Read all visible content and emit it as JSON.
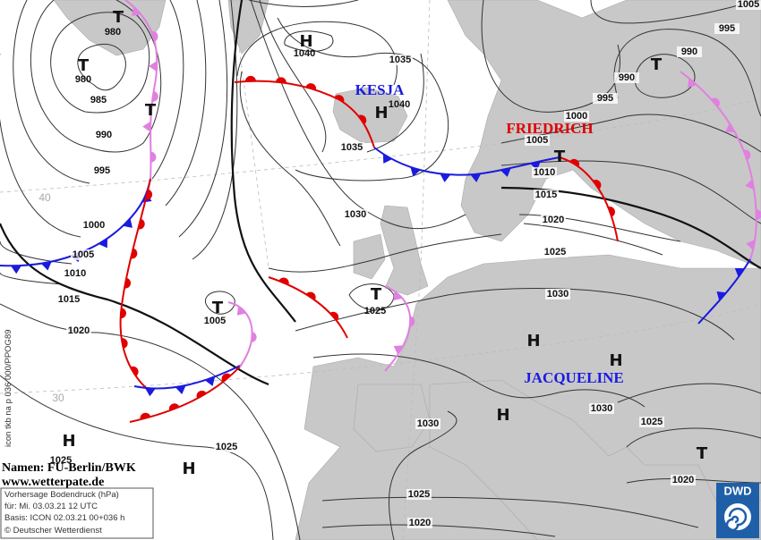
{
  "systems": [
    {
      "symbol": "T",
      "pressure": 980
    },
    {
      "symbol": "T",
      "pressure": 980
    },
    {
      "symbol": "T"
    },
    {
      "symbol": "T",
      "pressure": 1005
    },
    {
      "symbol": "H",
      "pressure": 1025
    },
    {
      "symbol": "H"
    },
    {
      "symbol": "H",
      "pressure": 1040
    },
    {
      "symbol": "H",
      "pressure": 1040
    },
    {
      "symbol": "T",
      "pressure": 1025
    },
    {
      "symbol": "H"
    },
    {
      "symbol": "H"
    },
    {
      "symbol": "H"
    },
    {
      "symbol": "T"
    },
    {
      "symbol": "T"
    },
    {
      "symbol": "T"
    }
  ],
  "isobar_labels": [
    985,
    990,
    995,
    1000,
    1005,
    1010,
    1015,
    1020,
    1025,
    1035,
    1035,
    1030,
    1030,
    1030,
    1030,
    1025,
    1020,
    1025,
    1020,
    1005,
    1010,
    1015,
    1020,
    1025,
    1000,
    995,
    990,
    990,
    995,
    1005
  ],
  "front_names": [
    "KESJA",
    "FRIEDRICH",
    "JACQUELINE"
  ],
  "grid_labels": [
    40,
    30
  ],
  "credits": {
    "names": "Namen: FU-Berlin/BWK",
    "website": "www.wetterpate.de"
  },
  "info_box": {
    "lines": [
      "Vorhersage Bodendruck (hPa)",
      "für:  Mi. 03.03.21  12 UTC",
      "Basis: ICON  02.03.21 00+036 h",
      "© Deutscher Wetterdienst"
    ]
  },
  "model_code": "icon tkb na p 036 000/PPOG89",
  "logo": "DWD"
}
